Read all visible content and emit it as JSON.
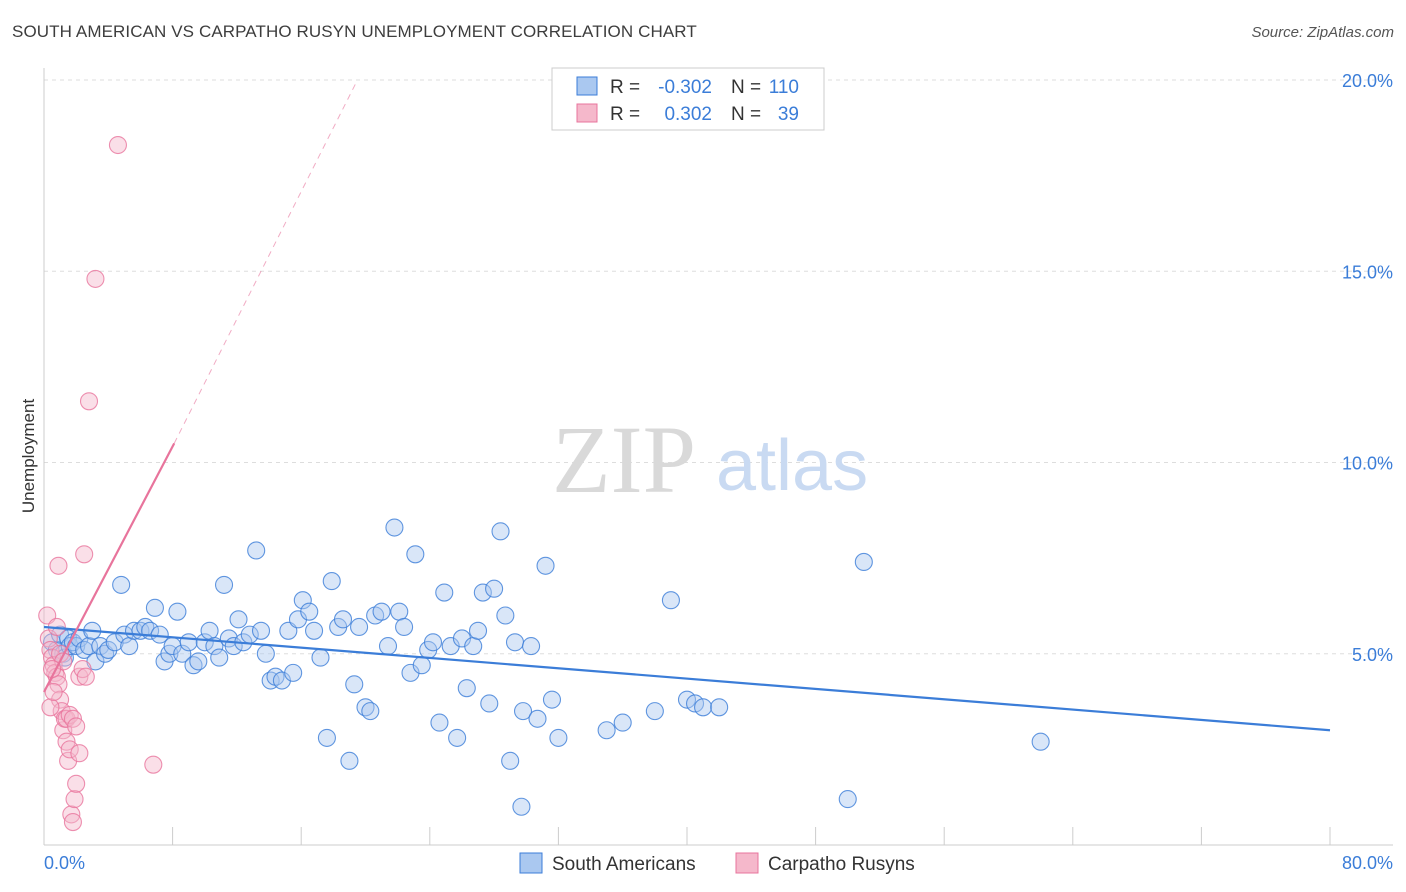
{
  "title": "SOUTH AMERICAN VS CARPATHO RUSYN UNEMPLOYMENT CORRELATION CHART",
  "source": "Source: ZipAtlas.com",
  "watermark": {
    "zip": "ZIP",
    "atlas": "atlas"
  },
  "colors": {
    "blue": "#3b7dd8",
    "pink": "#e8749c",
    "blue_fill": "#aac8f0",
    "pink_fill": "#f5b8cb",
    "grid": "#dddddd"
  },
  "legend": {
    "r_label": "R =",
    "n_label": "N =",
    "rows": [
      {
        "r": "-0.302",
        "n": "110"
      },
      {
        "r": "0.302",
        "n": "39"
      }
    ]
  },
  "chart_data": {
    "type": "scatter",
    "xlabel": "",
    "ylabel": "Unemployment",
    "xlim": [
      0,
      80
    ],
    "ylim": [
      0,
      20
    ],
    "x_tick_labels": {
      "min": "0.0%",
      "max": "80.0%"
    },
    "y_ticks": [
      5,
      10,
      15,
      20
    ],
    "y_tick_labels": [
      "5.0%",
      "10.0%",
      "15.0%",
      "20.0%"
    ],
    "grid": true,
    "legend_position": "top-center",
    "series": [
      {
        "name": "South Americans",
        "color": "#3b7dd8",
        "trend": {
          "x0": 0,
          "y0": 5.7,
          "x1": 80,
          "y1": 3.0
        },
        "points": [
          [
            0.5,
            5.3
          ],
          [
            0.8,
            5.1
          ],
          [
            1.0,
            5.5
          ],
          [
            1.2,
            5.0
          ],
          [
            1.3,
            4.9
          ],
          [
            1.5,
            5.4
          ],
          [
            1.6,
            5.2
          ],
          [
            1.8,
            5.3
          ],
          [
            2.0,
            5.2
          ],
          [
            2.2,
            5.4
          ],
          [
            2.5,
            5.1
          ],
          [
            2.8,
            5.2
          ],
          [
            3.0,
            5.6
          ],
          [
            3.2,
            4.8
          ],
          [
            3.5,
            5.2
          ],
          [
            3.8,
            5.0
          ],
          [
            4.0,
            5.1
          ],
          [
            4.4,
            5.3
          ],
          [
            4.8,
            6.8
          ],
          [
            5.0,
            5.5
          ],
          [
            5.3,
            5.2
          ],
          [
            5.6,
            5.6
          ],
          [
            6.0,
            5.6
          ],
          [
            6.3,
            5.7
          ],
          [
            6.6,
            5.6
          ],
          [
            6.9,
            6.2
          ],
          [
            7.2,
            5.5
          ],
          [
            7.5,
            4.8
          ],
          [
            7.8,
            5.0
          ],
          [
            8.0,
            5.2
          ],
          [
            8.3,
            6.1
          ],
          [
            8.6,
            5.0
          ],
          [
            9.0,
            5.3
          ],
          [
            9.3,
            4.7
          ],
          [
            9.6,
            4.8
          ],
          [
            10.0,
            5.3
          ],
          [
            10.3,
            5.6
          ],
          [
            10.6,
            5.2
          ],
          [
            10.9,
            4.9
          ],
          [
            11.2,
            6.8
          ],
          [
            11.5,
            5.4
          ],
          [
            11.8,
            5.2
          ],
          [
            12.1,
            5.9
          ],
          [
            12.4,
            5.3
          ],
          [
            12.8,
            5.5
          ],
          [
            13.2,
            7.7
          ],
          [
            13.5,
            5.6
          ],
          [
            13.8,
            5.0
          ],
          [
            14.1,
            4.3
          ],
          [
            14.4,
            4.4
          ],
          [
            14.8,
            4.3
          ],
          [
            15.2,
            5.6
          ],
          [
            15.5,
            4.5
          ],
          [
            15.8,
            5.9
          ],
          [
            16.1,
            6.4
          ],
          [
            16.5,
            6.1
          ],
          [
            16.8,
            5.6
          ],
          [
            17.2,
            4.9
          ],
          [
            17.6,
            2.8
          ],
          [
            17.9,
            6.9
          ],
          [
            18.3,
            5.7
          ],
          [
            18.6,
            5.9
          ],
          [
            19.0,
            2.2
          ],
          [
            19.3,
            4.2
          ],
          [
            19.6,
            5.7
          ],
          [
            20.0,
            3.6
          ],
          [
            20.3,
            3.5
          ],
          [
            20.6,
            6.0
          ],
          [
            21.0,
            6.1
          ],
          [
            21.4,
            5.2
          ],
          [
            21.8,
            8.3
          ],
          [
            22.1,
            6.1
          ],
          [
            22.4,
            5.7
          ],
          [
            22.8,
            4.5
          ],
          [
            23.1,
            7.6
          ],
          [
            23.5,
            4.7
          ],
          [
            23.9,
            5.1
          ],
          [
            24.2,
            5.3
          ],
          [
            24.6,
            3.2
          ],
          [
            24.9,
            6.6
          ],
          [
            25.3,
            5.2
          ],
          [
            25.7,
            2.8
          ],
          [
            26.0,
            5.4
          ],
          [
            26.3,
            4.1
          ],
          [
            26.7,
            5.2
          ],
          [
            27.0,
            5.6
          ],
          [
            27.3,
            6.6
          ],
          [
            27.7,
            3.7
          ],
          [
            28.0,
            6.7
          ],
          [
            28.4,
            8.2
          ],
          [
            28.7,
            6.0
          ],
          [
            29.0,
            2.2
          ],
          [
            29.3,
            5.3
          ],
          [
            29.7,
            1.0
          ],
          [
            29.8,
            3.5
          ],
          [
            30.3,
            5.2
          ],
          [
            30.7,
            3.3
          ],
          [
            31.2,
            7.3
          ],
          [
            31.6,
            3.8
          ],
          [
            32.0,
            2.8
          ],
          [
            35.0,
            3.0
          ],
          [
            36.0,
            3.2
          ],
          [
            38.0,
            3.5
          ],
          [
            39.0,
            6.4
          ],
          [
            40.0,
            3.8
          ],
          [
            40.5,
            3.7
          ],
          [
            41.0,
            3.6
          ],
          [
            42.0,
            3.6
          ],
          [
            50.0,
            1.2
          ],
          [
            51.0,
            7.4
          ],
          [
            62.0,
            2.7
          ]
        ]
      },
      {
        "name": "Carpatho Rusyns",
        "color": "#e8749c",
        "trend": {
          "x0": 0,
          "y0": 4.0,
          "x1": 8.1,
          "y1": 10.5,
          "dash_x1": 19.5,
          "dash_y1": 20.0
        },
        "points": [
          [
            0.2,
            6.0
          ],
          [
            0.3,
            5.4
          ],
          [
            0.4,
            5.1
          ],
          [
            0.5,
            4.9
          ],
          [
            0.6,
            4.7
          ],
          [
            0.7,
            4.5
          ],
          [
            0.8,
            4.4
          ],
          [
            0.9,
            4.2
          ],
          [
            1.0,
            3.8
          ],
          [
            1.1,
            3.5
          ],
          [
            1.2,
            3.0
          ],
          [
            1.3,
            3.3
          ],
          [
            1.4,
            2.7
          ],
          [
            1.5,
            2.2
          ],
          [
            1.6,
            2.5
          ],
          [
            1.7,
            0.8
          ],
          [
            1.8,
            0.6
          ],
          [
            1.9,
            1.2
          ],
          [
            2.0,
            1.6
          ],
          [
            2.2,
            2.4
          ],
          [
            0.4,
            3.6
          ],
          [
            0.6,
            4.0
          ],
          [
            0.8,
            5.7
          ],
          [
            1.0,
            5.0
          ],
          [
            1.2,
            4.8
          ],
          [
            1.4,
            3.3
          ],
          [
            1.6,
            3.4
          ],
          [
            1.8,
            3.3
          ],
          [
            2.0,
            3.1
          ],
          [
            2.2,
            4.4
          ],
          [
            2.4,
            4.6
          ],
          [
            2.6,
            4.4
          ],
          [
            0.9,
            7.3
          ],
          [
            2.5,
            7.6
          ],
          [
            2.8,
            11.6
          ],
          [
            3.2,
            14.8
          ],
          [
            4.6,
            18.3
          ],
          [
            6.8,
            2.1
          ],
          [
            0.5,
            4.6
          ]
        ]
      }
    ]
  }
}
